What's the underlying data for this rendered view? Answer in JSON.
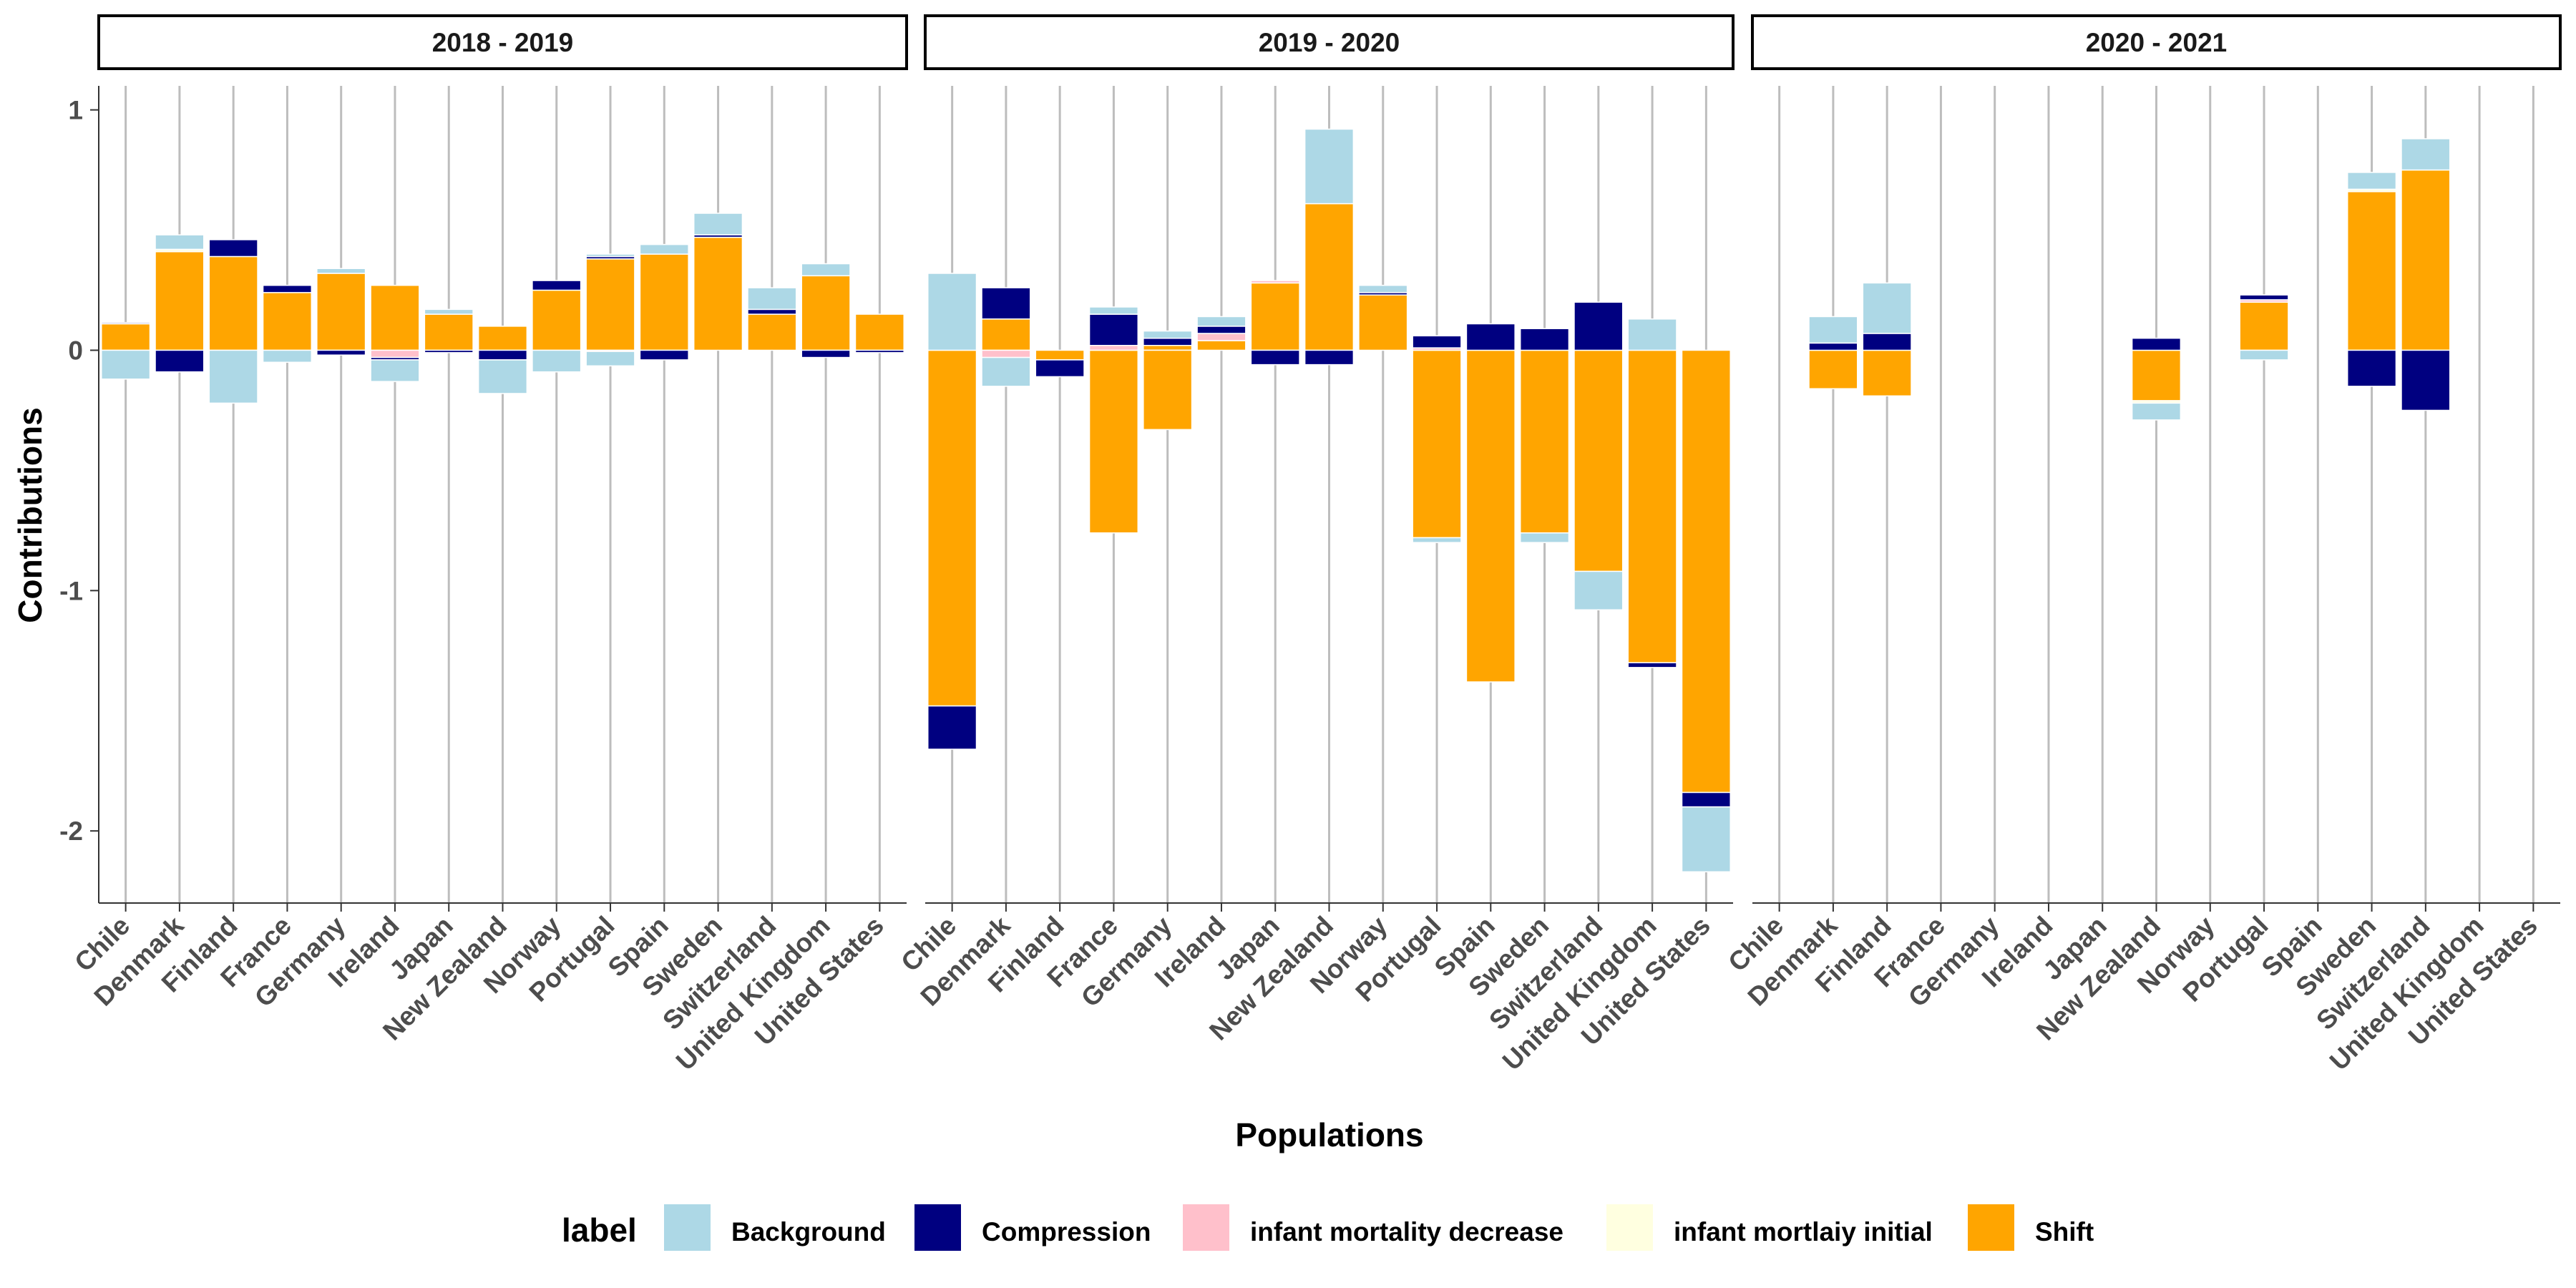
{
  "chart_data": {
    "type": "bar",
    "stacked": true,
    "ylabel": "Contributions",
    "xlabel": "Populations",
    "ylim": [
      -2.3,
      1.1
    ],
    "yticks": [
      1,
      0,
      -1,
      -2
    ],
    "yticks_labels": [
      "1",
      "0",
      "-1",
      "-2"
    ],
    "grid": "vertical major gridlines",
    "legend_position": "bottom",
    "legend_title": "label",
    "categories": [
      "Chile",
      "Denmark",
      "Finland",
      "France",
      "Germany",
      "Ireland",
      "Japan",
      "New Zealand",
      "Norway",
      "Portugal",
      "Spain",
      "Sweden",
      "Switzerland",
      "United Kingdom",
      "United States"
    ],
    "series": [
      {
        "name": "Background",
        "color": "#add8e6"
      },
      {
        "name": "Compression",
        "color": "#000080"
      },
      {
        "name": "infant mortality decrease",
        "color": "#ffc0cb"
      },
      {
        "name": "infant mortlaiy initial",
        "color": "#ffffe0"
      },
      {
        "name": "Shift",
        "color": "#ffa500"
      }
    ],
    "panels": [
      {
        "title": "2018 - 2019",
        "values": {
          "Chile": {
            "Shift": 0.11,
            "Compression": 0.005,
            "Background": -0.12
          },
          "Denmark": {
            "Shift": 0.41,
            "infant mortlaiy initial": 0.01,
            "Background": 0.06,
            "Compression": -0.09
          },
          "Finland": {
            "Shift": 0.39,
            "Compression": 0.07,
            "Background": -0.22
          },
          "France": {
            "Shift": 0.24,
            "Compression": 0.03,
            "Background": -0.05
          },
          "Germany": {
            "Shift": 0.32,
            "Background": 0.02,
            "Compression": -0.02
          },
          "Ireland": {
            "Shift": 0.27,
            "infant mortality decrease": -0.03,
            "Compression": -0.01,
            "Background": -0.09
          },
          "Japan": {
            "Shift": 0.15,
            "Background": 0.02,
            "Compression": -0.01
          },
          "New Zealand": {
            "Shift": 0.1,
            "Compression": -0.04,
            "Background": -0.14
          },
          "Norway": {
            "Shift": 0.25,
            "Compression": 0.04,
            "Background": -0.09
          },
          "Portugal": {
            "Shift": 0.38,
            "Compression": 0.01,
            "Background": 0.01,
            "infant mortality decrease": -0.005,
            "Background_neg": -0.06
          },
          "Spain": {
            "Shift": 0.4,
            "Background": 0.04,
            "Compression": -0.04
          },
          "Sweden": {
            "Shift": 0.47,
            "Compression": 0.01,
            "Background": 0.09
          },
          "Switzerland": {
            "Shift": 0.15,
            "Compression": 0.02,
            "Background": 0.09
          },
          "United Kingdom": {
            "Shift": 0.31,
            "Background": 0.05,
            "Compression": -0.03
          },
          "United States": {
            "Shift": 0.15,
            "Compression": -0.01
          }
        }
      },
      {
        "title": "2019 - 2020",
        "values": {
          "Chile": {
            "Background": 0.32,
            "Shift": -1.48,
            "Compression": -0.18
          },
          "Denmark": {
            "Shift": 0.13,
            "Compression": 0.13,
            "infant mortality decrease": -0.03,
            "Background": -0.12
          },
          "Finland": {
            "Shift": -0.04,
            "Compression": -0.07
          },
          "France": {
            "infant mortality decrease": 0.02,
            "Compression": 0.13,
            "Background": 0.03,
            "Shift": -0.76
          },
          "Germany": {
            "Shift": 0.02,
            "Compression": 0.03,
            "Background": 0.03,
            "Shift_neg": -0.33
          },
          "Ireland": {
            "Shift": 0.04,
            "infant mortality decrease": 0.03,
            "Compression": 0.03,
            "Background": 0.04
          },
          "Japan": {
            "Shift": 0.28,
            "infant mortality decrease": 0.01,
            "Compression": -0.06
          },
          "New Zealand": {
            "Shift": 0.61,
            "Background": 0.31,
            "Compression": -0.06
          },
          "Norway": {
            "Shift": 0.23,
            "Compression": 0.01,
            "Background": 0.03
          },
          "Portugal": {
            "infant mortality decrease": 0.01,
            "Compression": 0.05,
            "Shift": -0.78,
            "Background": -0.02
          },
          "Spain": {
            "Compression": 0.11,
            "Shift": -1.38
          },
          "Sweden": {
            "Compression": 0.09,
            "Shift": -0.76,
            "Background": -0.04
          },
          "Switzerland": {
            "Compression": 0.2,
            "Shift": -0.92,
            "Background": -0.16
          },
          "United Kingdom": {
            "Background": 0.13,
            "Shift": -1.3,
            "Compression": -0.02
          },
          "United States": {
            "Shift": -1.84,
            "Compression": -0.06,
            "Background": -0.27
          }
        }
      },
      {
        "title": "2020 - 2021",
        "values": {
          "Denmark": {
            "Compression": 0.03,
            "Background": 0.11,
            "Shift": -0.16
          },
          "Finland": {
            "Compression": 0.07,
            "Background": 0.21,
            "Shift": -0.19
          },
          "New Zealand": {
            "Compression": 0.05,
            "Shift": -0.21,
            "infant mortlaiy initial": -0.01,
            "Background": -0.07
          },
          "Portugal": {
            "Shift": 0.2,
            "infant mortality decrease": 0.01,
            "Compression": 0.02,
            "Background": -0.04
          },
          "Sweden": {
            "Shift": 0.66,
            "infant mortlaiy initial": 0.01,
            "Background": 0.07,
            "Compression": -0.15
          },
          "Switzerland": {
            "Shift": 0.75,
            "Background": 0.13,
            "Compression": -0.25
          }
        }
      }
    ]
  }
}
